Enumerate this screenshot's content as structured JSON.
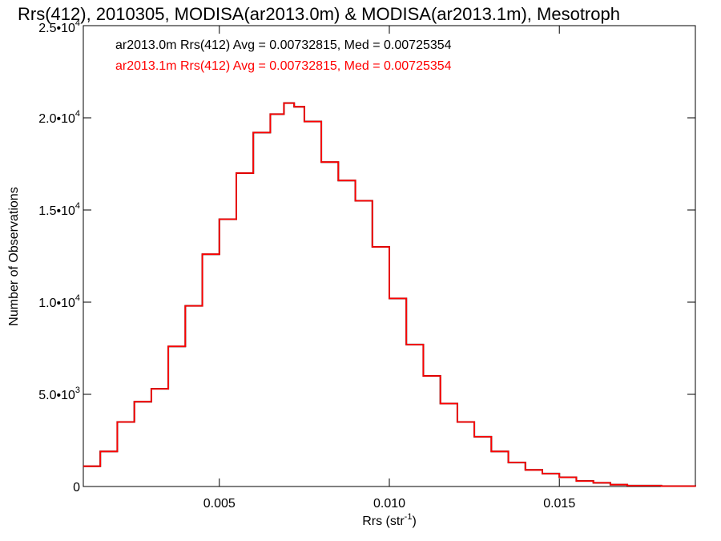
{
  "chart_data": {
    "type": "line",
    "step": true,
    "title": "Rrs(412), 2010305, MODISA(ar2013.0m) & MODISA(ar2013.1m), Mesotroph",
    "xlabel": "Rrs (str",
    "xlabel_sup": "-1",
    "xlabel_end": ")",
    "ylabel": "Number of Observations",
    "xlim": [
      0.001,
      0.019
    ],
    "ylim": [
      0,
      25000
    ],
    "x_ticks": [
      {
        "value": 0.005,
        "label": "0.005"
      },
      {
        "value": 0.01,
        "label": "0.010"
      },
      {
        "value": 0.015,
        "label": "0.015"
      }
    ],
    "y_ticks": [
      {
        "value": 0,
        "mant": "0",
        "exp": ""
      },
      {
        "value": 5000,
        "mant": "5.0•10",
        "exp": "3"
      },
      {
        "value": 10000,
        "mant": "1.0•10",
        "exp": "4"
      },
      {
        "value": 15000,
        "mant": "1.5•10",
        "exp": "4"
      },
      {
        "value": 20000,
        "mant": "2.0•10",
        "exp": "4"
      },
      {
        "value": 25000,
        "mant": "2.5•10",
        "exp": "4"
      }
    ],
    "legend_position": "top-left",
    "series": [
      {
        "name": "ar2013.0m Rrs(412) Avg = 0.00732815, Med = 0.00725354",
        "color": "#000000",
        "x": [
          0.001,
          0.0015,
          0.002,
          0.0025,
          0.003,
          0.0035,
          0.004,
          0.0045,
          0.005,
          0.0055,
          0.006,
          0.0065,
          0.0069,
          0.0072,
          0.0075,
          0.008,
          0.0085,
          0.009,
          0.0095,
          0.01,
          0.0105,
          0.011,
          0.0115,
          0.012,
          0.0125,
          0.013,
          0.0135,
          0.014,
          0.0145,
          0.015,
          0.0155,
          0.016,
          0.0165,
          0.017,
          0.018,
          0.019
        ],
        "y": [
          1100,
          1900,
          3500,
          4600,
          5300,
          7600,
          9800,
          12600,
          14500,
          17000,
          19200,
          20200,
          20800,
          20600,
          19800,
          17600,
          16600,
          15500,
          13000,
          10200,
          7700,
          6000,
          4500,
          3500,
          2700,
          1900,
          1300,
          900,
          700,
          500,
          300,
          200,
          100,
          50,
          20,
          0
        ]
      },
      {
        "name": "ar2013.1m Rrs(412) Avg = 0.00732815, Med = 0.00725354",
        "color": "#ff0000",
        "x": [
          0.001,
          0.0015,
          0.002,
          0.0025,
          0.003,
          0.0035,
          0.004,
          0.0045,
          0.005,
          0.0055,
          0.006,
          0.0065,
          0.0069,
          0.0072,
          0.0075,
          0.008,
          0.0085,
          0.009,
          0.0095,
          0.01,
          0.0105,
          0.011,
          0.0115,
          0.012,
          0.0125,
          0.013,
          0.0135,
          0.014,
          0.0145,
          0.015,
          0.0155,
          0.016,
          0.0165,
          0.017,
          0.018,
          0.019
        ],
        "y": [
          1100,
          1900,
          3500,
          4600,
          5300,
          7600,
          9800,
          12600,
          14500,
          17000,
          19200,
          20200,
          20800,
          20600,
          19800,
          17600,
          16600,
          15500,
          13000,
          10200,
          7700,
          6000,
          4500,
          3500,
          2700,
          1900,
          1300,
          900,
          700,
          500,
          300,
          200,
          100,
          50,
          20,
          0
        ]
      }
    ]
  }
}
